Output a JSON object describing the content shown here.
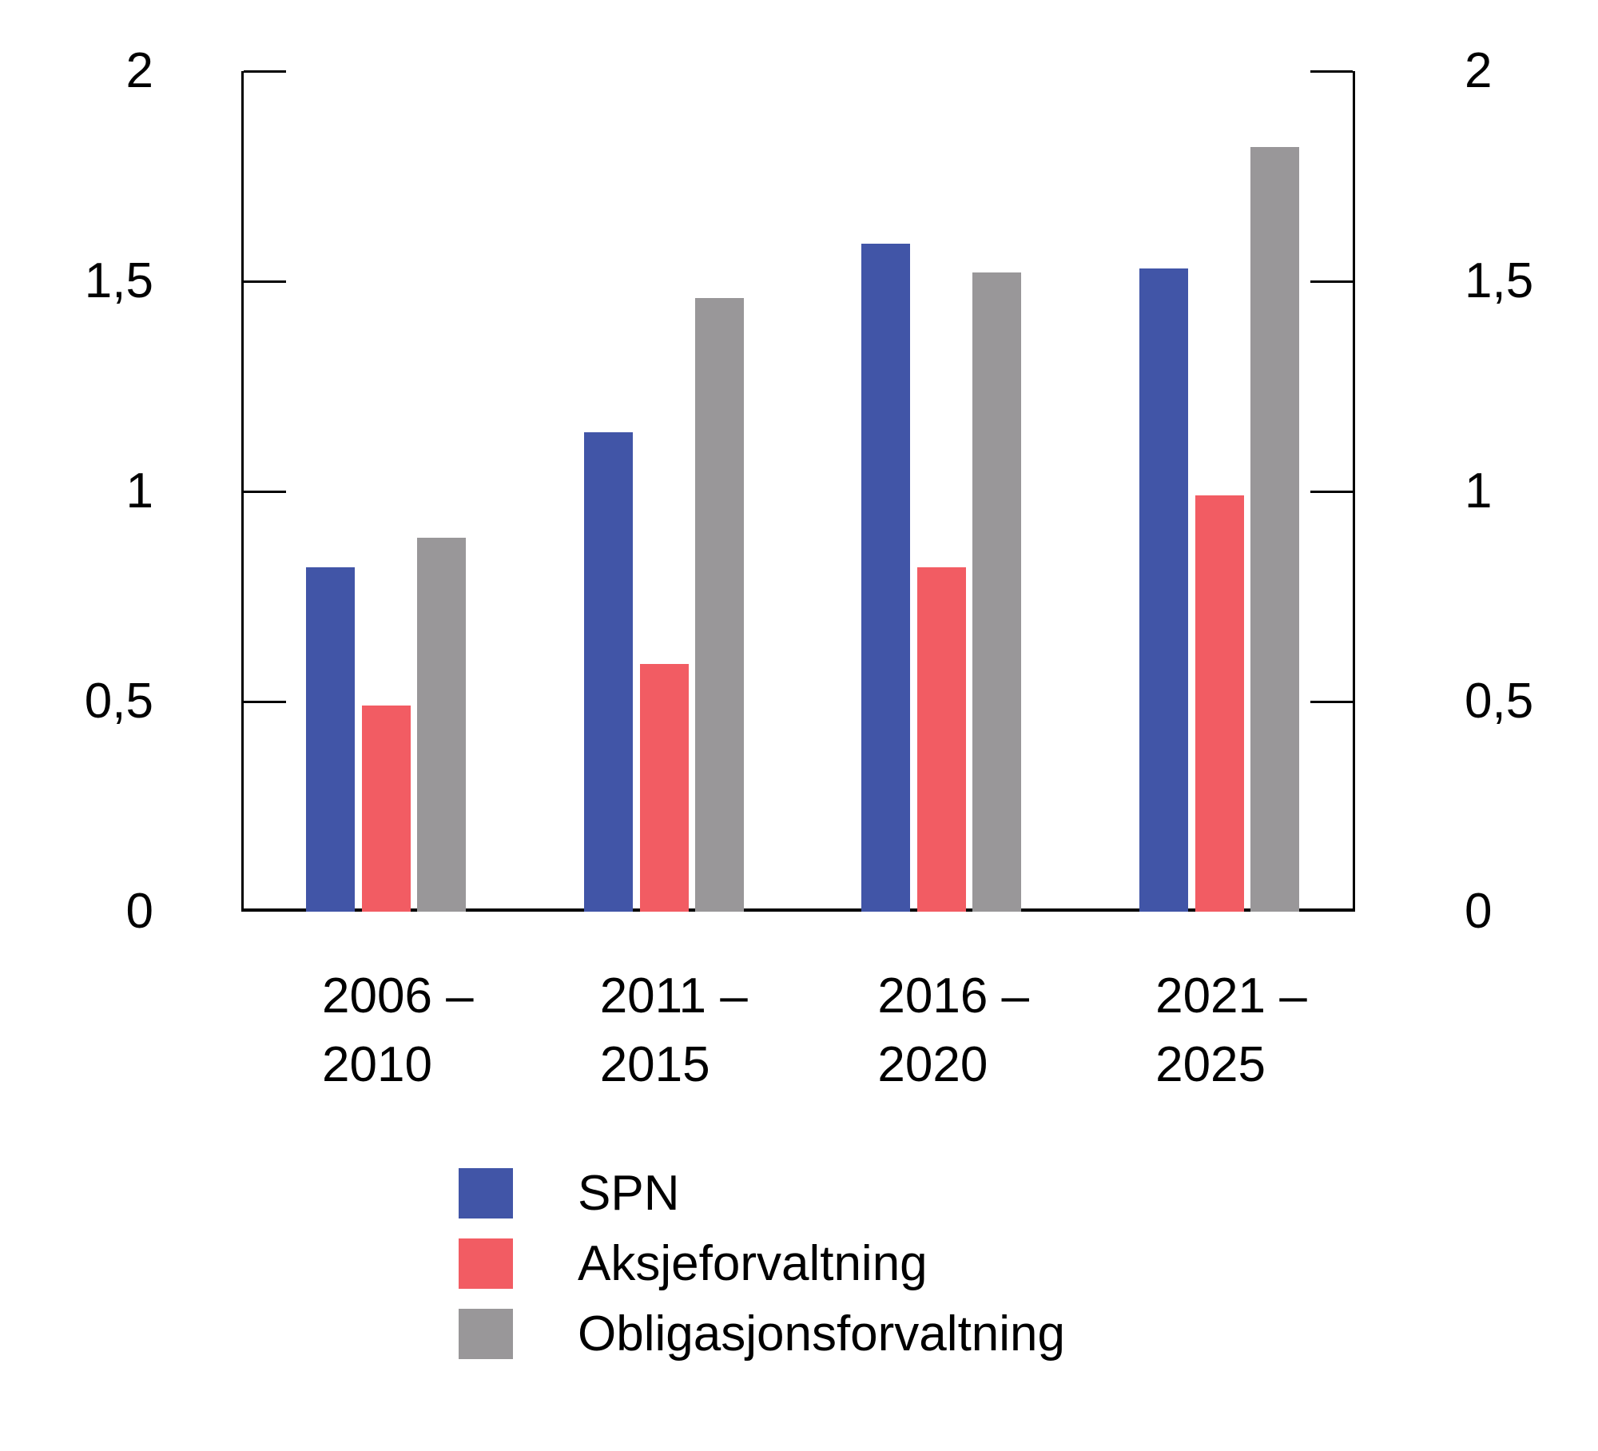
{
  "chart_data": {
    "type": "bar",
    "title": "",
    "xlabel": "",
    "ylabel": "",
    "ylim": [
      0,
      2
    ],
    "grid": false,
    "y_axis_sides": "both",
    "legend_position": "bottom-left",
    "decimal_style": "comma",
    "categories": [
      {
        "line1": "2006 –",
        "line2": "2010"
      },
      {
        "line1": "2011 –",
        "line2": "2015"
      },
      {
        "line1": "2016 –",
        "line2": "2020"
      },
      {
        "line1": "2021 –",
        "line2": "2025"
      }
    ],
    "yticks": [
      {
        "value": 2,
        "label": "2"
      },
      {
        "value": 1.5,
        "label": "1,5"
      },
      {
        "value": 1,
        "label": "1"
      },
      {
        "value": 0.5,
        "label": "0,5"
      },
      {
        "value": 0,
        "label": "0"
      }
    ],
    "series": [
      {
        "name": "SPN",
        "color": "#4155A7",
        "values": [
          0.82,
          1.14,
          1.59,
          1.53
        ]
      },
      {
        "name": "Aksjeforvaltning",
        "color": "#F25C63",
        "values": [
          0.49,
          0.59,
          0.82,
          0.99
        ]
      },
      {
        "name": "Obligasjonsforvaltning",
        "color": "#999799",
        "values": [
          0.89,
          1.46,
          1.52,
          1.82
        ]
      }
    ],
    "colors": {
      "axis": "#000000",
      "text": "#000000",
      "background": "#ffffff"
    }
  }
}
